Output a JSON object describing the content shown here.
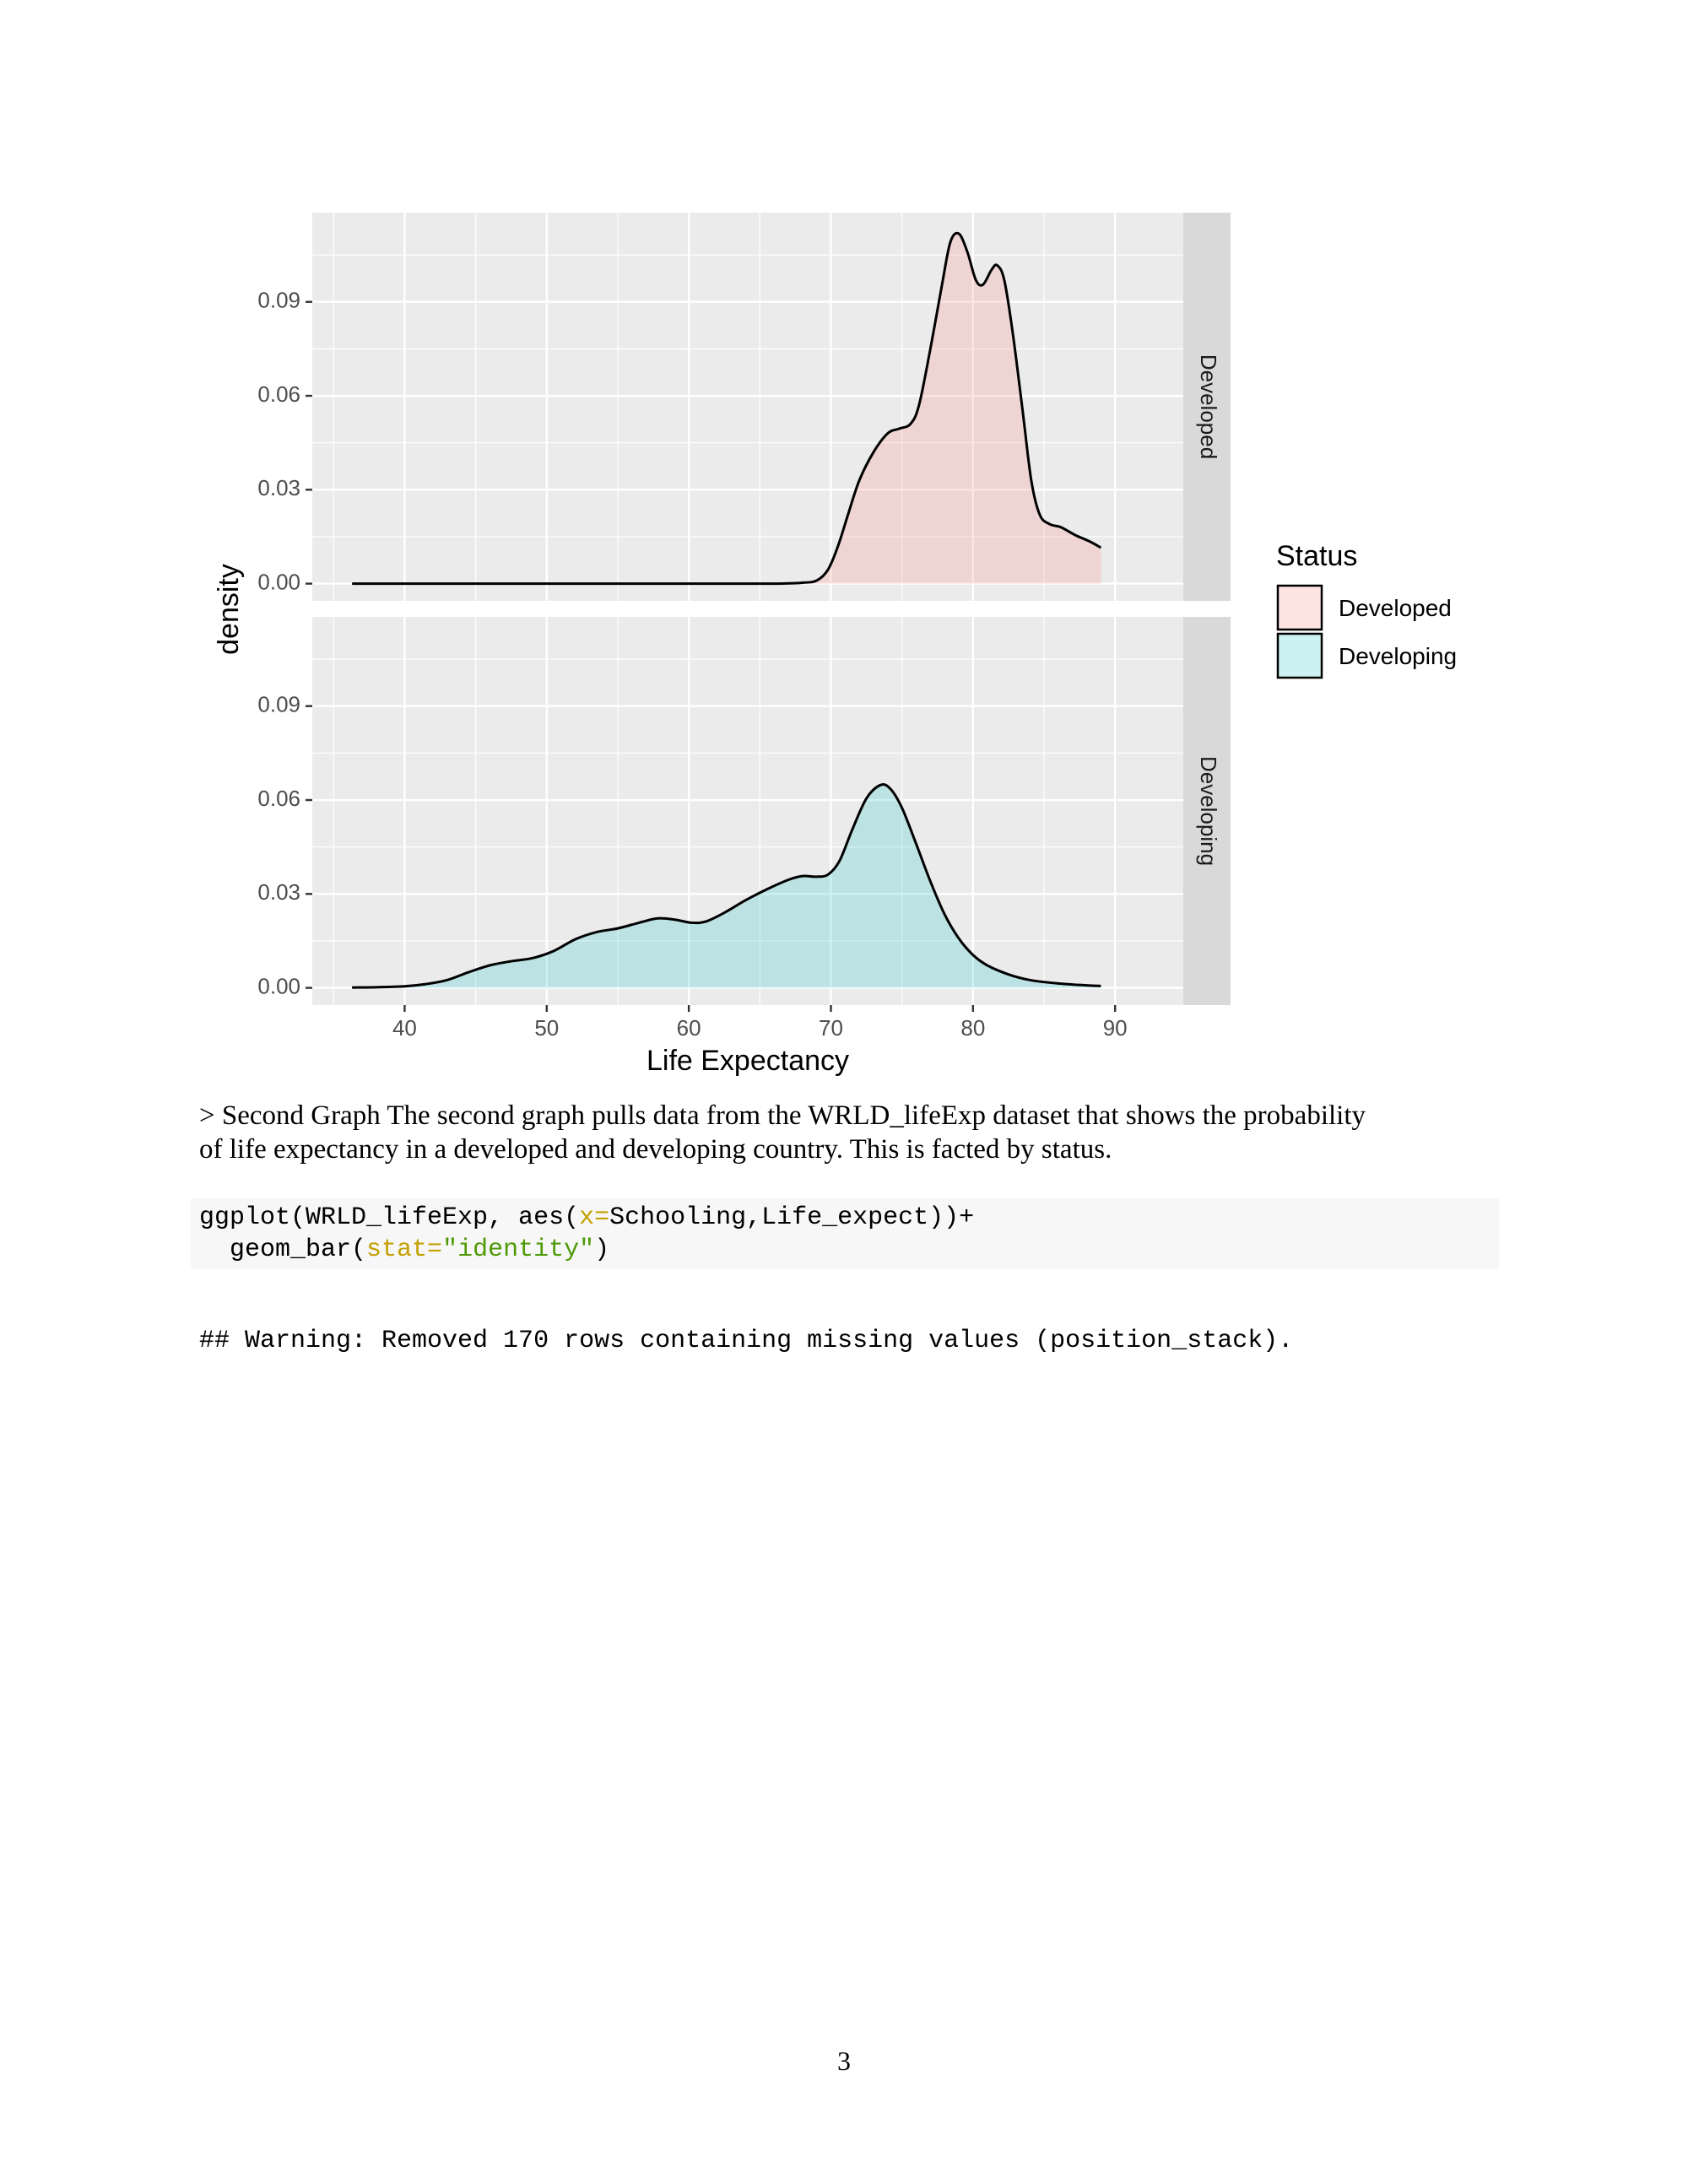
{
  "chart_data": {
    "type": "area",
    "facet_by": "Status",
    "xlabel": "Life Expectancy",
    "ylabel": "density",
    "xlim": [
      33.5,
      94.8
    ],
    "ylim": [
      -0.0055,
      0.1185
    ],
    "x_ticks": [
      40,
      50,
      60,
      70,
      80,
      90
    ],
    "x_tick_labels": [
      "40",
      "50",
      "60",
      "70",
      "80",
      "90"
    ],
    "y_ticks": [
      0.0,
      0.03,
      0.06,
      0.09
    ],
    "y_tick_labels": [
      "0.00",
      "0.03",
      "0.06",
      "0.09"
    ],
    "grid": true,
    "legend": {
      "title": "Status",
      "position": "right",
      "entries": [
        {
          "label": "Developed",
          "color": "#F8766D"
        },
        {
          "label": "Developing",
          "color": "#00BFC4"
        }
      ]
    },
    "series": [
      {
        "name": "Developed",
        "fill": "#F8766D",
        "points": [
          [
            36.3,
            0.0
          ],
          [
            50,
            0.0
          ],
          [
            60,
            0.0
          ],
          [
            66,
            0.0
          ],
          [
            68,
            0.0003
          ],
          [
            69,
            0.001
          ],
          [
            69.8,
            0.0045
          ],
          [
            70.5,
            0.012
          ],
          [
            71.2,
            0.022
          ],
          [
            72,
            0.033
          ],
          [
            73,
            0.042
          ],
          [
            74,
            0.048
          ],
          [
            74.8,
            0.0495
          ],
          [
            75.6,
            0.051
          ],
          [
            76.2,
            0.057
          ],
          [
            77,
            0.075
          ],
          [
            77.8,
            0.095
          ],
          [
            78.4,
            0.109
          ],
          [
            79.0,
            0.1118
          ],
          [
            79.6,
            0.106
          ],
          [
            80.2,
            0.097
          ],
          [
            80.7,
            0.0955
          ],
          [
            81.3,
            0.1002
          ],
          [
            81.7,
            0.1017
          ],
          [
            82.2,
            0.097
          ],
          [
            82.8,
            0.08
          ],
          [
            83.5,
            0.055
          ],
          [
            84.1,
            0.033
          ],
          [
            84.7,
            0.022
          ],
          [
            85.4,
            0.019
          ],
          [
            86.2,
            0.018
          ],
          [
            87.2,
            0.0155
          ],
          [
            88.2,
            0.0135
          ],
          [
            89.0,
            0.0115
          ]
        ]
      },
      {
        "name": "Developing",
        "fill": "#00BFC4",
        "points": [
          [
            36.3,
            0.0001
          ],
          [
            38,
            0.0002
          ],
          [
            40,
            0.0005
          ],
          [
            41.5,
            0.0012
          ],
          [
            43,
            0.0025
          ],
          [
            44.5,
            0.005
          ],
          [
            46,
            0.0072
          ],
          [
            47.5,
            0.0085
          ],
          [
            49,
            0.0095
          ],
          [
            50.5,
            0.0118
          ],
          [
            52,
            0.0155
          ],
          [
            53.5,
            0.0178
          ],
          [
            55,
            0.019
          ],
          [
            56.5,
            0.0208
          ],
          [
            57.8,
            0.0222
          ],
          [
            59,
            0.0218
          ],
          [
            60.2,
            0.0208
          ],
          [
            61.2,
            0.0212
          ],
          [
            62.5,
            0.024
          ],
          [
            64,
            0.028
          ],
          [
            65.5,
            0.0315
          ],
          [
            67,
            0.0345
          ],
          [
            68,
            0.0357
          ],
          [
            69,
            0.0355
          ],
          [
            69.8,
            0.0362
          ],
          [
            70.6,
            0.0405
          ],
          [
            71.5,
            0.0505
          ],
          [
            72.5,
            0.0605
          ],
          [
            73.5,
            0.0648
          ],
          [
            74.2,
            0.0635
          ],
          [
            75,
            0.0575
          ],
          [
            76,
            0.046
          ],
          [
            77,
            0.034
          ],
          [
            78,
            0.0235
          ],
          [
            79,
            0.0158
          ],
          [
            80,
            0.0105
          ],
          [
            81,
            0.0072
          ],
          [
            82.5,
            0.0043
          ],
          [
            84,
            0.0025
          ],
          [
            86,
            0.0014
          ],
          [
            88,
            0.0008
          ],
          [
            89,
            0.0006
          ]
        ]
      }
    ]
  },
  "text": {
    "prose_line1": "> Second Graph The second graph pulls data from the WRLD_lifeExp dataset that shows the probability",
    "prose_line2": "of life expectancy in a developed and developing country. This is facted by status.",
    "code": {
      "l1_a": "ggplot(WRLD_lifeExp, aes(",
      "l1_b": "x=",
      "l1_c": "Schooling,Life_expect))+",
      "l2_a": "  geom_bar(",
      "l2_b": "stat=",
      "l2_c": "\"identity\"",
      "l2_d": ")"
    },
    "output": "## Warning: Removed 170 rows containing missing values (position_stack).",
    "page_number": "3"
  }
}
